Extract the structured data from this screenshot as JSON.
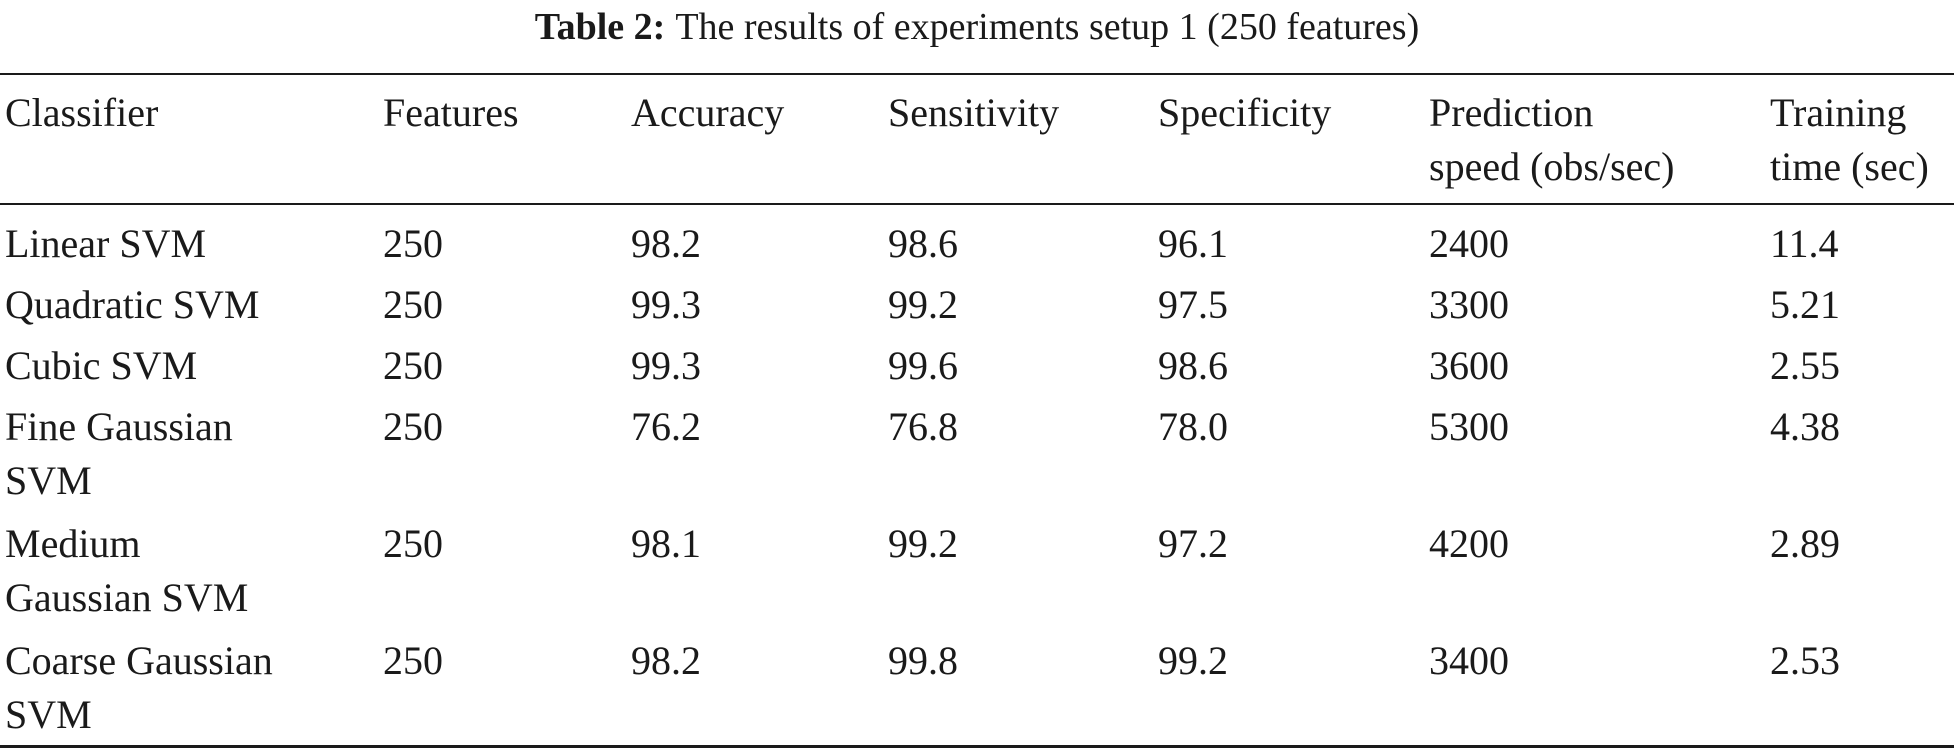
{
  "caption": {
    "label": "Table 2:",
    "text": "The results of experiments setup 1 (250 features)"
  },
  "table": {
    "headers": [
      [
        "Classifier"
      ],
      [
        "Features"
      ],
      [
        "Accuracy"
      ],
      [
        "Sensitivity"
      ],
      [
        "Specificity"
      ],
      [
        "Prediction",
        "speed (obs/sec)"
      ],
      [
        "Training",
        "time (sec)"
      ]
    ],
    "rows": [
      [
        [
          "Linear SVM"
        ],
        [
          "250"
        ],
        [
          "98.2"
        ],
        [
          "98.6"
        ],
        [
          "96.1"
        ],
        [
          "2400"
        ],
        [
          "11.4"
        ]
      ],
      [
        [
          "Quadratic SVM"
        ],
        [
          "250"
        ],
        [
          "99.3"
        ],
        [
          "99.2"
        ],
        [
          "97.5"
        ],
        [
          "3300"
        ],
        [
          "5.21"
        ]
      ],
      [
        [
          "Cubic SVM"
        ],
        [
          "250"
        ],
        [
          "99.3"
        ],
        [
          "99.6"
        ],
        [
          "98.6"
        ],
        [
          "3600"
        ],
        [
          "2.55"
        ]
      ],
      [
        [
          "Fine Gaussian",
          "SVM"
        ],
        [
          "250"
        ],
        [
          "76.2"
        ],
        [
          "76.8"
        ],
        [
          "78.0"
        ],
        [
          "5300"
        ],
        [
          "4.38"
        ]
      ],
      [
        [
          "Medium",
          "Gaussian SVM"
        ],
        [
          "250"
        ],
        [
          "98.1"
        ],
        [
          "99.2"
        ],
        [
          "97.2"
        ],
        [
          "4200"
        ],
        [
          "2.89"
        ]
      ],
      [
        [
          "Coarse Gaussian",
          "SVM"
        ],
        [
          "250"
        ],
        [
          "98.2"
        ],
        [
          "99.8"
        ],
        [
          "99.2"
        ],
        [
          "3400"
        ],
        [
          "2.53"
        ]
      ]
    ]
  }
}
